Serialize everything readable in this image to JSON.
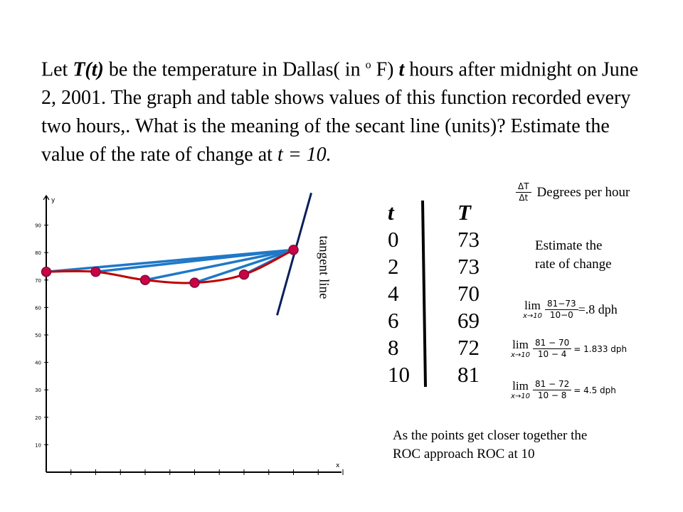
{
  "question": {
    "p1": "Let ",
    "T_of_t": "T(t)",
    "p2": " be the temperature in Dallas( in ",
    "degree_sup": "o",
    "p3": " F) ",
    "t_var": "t",
    "p4": " hours after midnight on June 2, 2001. The graph and table shows values of this function recorded every two hours,. What is the meaning of the secant line (units)? Estimate the value of the rate of change at ",
    "t_eq": "t = 10."
  },
  "units_note": {
    "num": "ΔT",
    "den": "Δt",
    "text": "Degrees per hour"
  },
  "estimate_note": {
    "line1": "Estimate the",
    "line2": "rate of change"
  },
  "limits": [
    {
      "lim": "lim",
      "sub": "x→10",
      "num": "81−73",
      "den": "10−0",
      "rhs": "=.8 dph"
    },
    {
      "lim": "lim",
      "sub": "x→10",
      "num": "81 − 70",
      "den": "10 − 4",
      "rhs": "= 1.833 dph"
    },
    {
      "lim": "lim",
      "sub": "x→10",
      "num": "81 − 72",
      "den": "10 − 8",
      "rhs": "= 4.5 dph"
    }
  ],
  "conclusion": {
    "line1": "As the points get closer together the",
    "line2": "ROC approach ROC at 10"
  },
  "tangent_label": "tangent line",
  "table": {
    "headers": [
      "t",
      "T"
    ],
    "rows": [
      [
        "0",
        "73"
      ],
      [
        "2",
        "73"
      ],
      [
        "4",
        "70"
      ],
      [
        "6",
        "69"
      ],
      [
        "8",
        "72"
      ],
      [
        "10",
        "81"
      ]
    ]
  },
  "colors": {
    "curve": "#c00000",
    "point": "#cc0044",
    "secant": "#1f78c8",
    "tangent": "#0a1f5c"
  },
  "chart_data": {
    "type": "line",
    "x": [
      0,
      2,
      4,
      6,
      8,
      10
    ],
    "y": [
      73,
      73,
      70,
      69,
      72,
      81
    ],
    "xlabel": "x",
    "ylabel": "y",
    "xlim": [
      0,
      12
    ],
    "ylim": [
      0,
      100
    ],
    "yticks": [
      "10",
      "20",
      "30",
      "40",
      "50",
      "60",
      "70",
      "80",
      "90"
    ],
    "secants_to": {
      "x": 10,
      "y": 81,
      "from_x": [
        0,
        2,
        4,
        6,
        8
      ]
    },
    "tangent_at": {
      "x": 10,
      "y": 81
    }
  }
}
